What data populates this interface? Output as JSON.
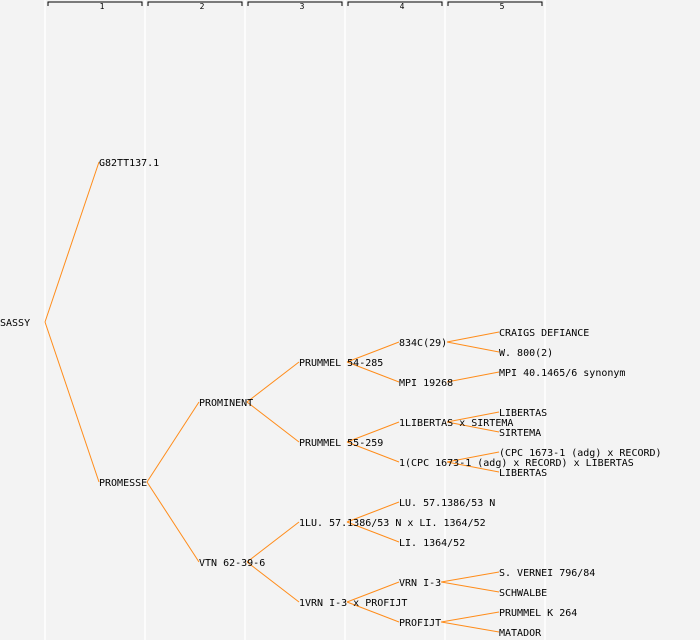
{
  "columns": [
    "1",
    "2",
    "3",
    "4",
    "5"
  ],
  "colors": {
    "line": "#ff8c1a",
    "highlight": "#0000ff",
    "background": "#f3f3f3"
  },
  "tree": {
    "label": "SASSY",
    "children": [
      {
        "label": "G82TT137.1",
        "children": []
      },
      {
        "label": "PROMESSE",
        "children": [
          {
            "label": "PROMINENT",
            "children": [
              {
                "label": "PRUMMEL 54-285",
                "children": [
                  {
                    "label": "834C(29)",
                    "children": [
                      {
                        "label": "CRAIGS DEFIANCE",
                        "children": []
                      },
                      {
                        "label": "W. 800(2)",
                        "children": []
                      }
                    ]
                  },
                  {
                    "label": "MPI 19268",
                    "highlight": true,
                    "children": [
                      {
                        "label": "MPI 40.1465/6 synonym",
                        "children": []
                      }
                    ]
                  }
                ]
              },
              {
                "label": "PRUMMEL 55-259",
                "children": [
                  {
                    "label": "1LIBERTAS x SIRTEMA",
                    "children": [
                      {
                        "label": "LIBERTAS",
                        "children": []
                      },
                      {
                        "label": "SIRTEMA",
                        "children": []
                      }
                    ]
                  },
                  {
                    "label": "1(CPC 1673-1 (adg) x RECORD) x LIBERTAS",
                    "children": [
                      {
                        "label": "(CPC 1673-1 (adg) x RECORD)",
                        "children": []
                      },
                      {
                        "label": "LIBERTAS",
                        "children": []
                      }
                    ]
                  }
                ]
              }
            ]
          },
          {
            "label": "VTN 62-39-6",
            "children": [
              {
                "label": "1LU. 57.1386/53 N x LI. 1364/52",
                "children": [
                  {
                    "label": "LU. 57.1386/53 N",
                    "children": []
                  },
                  {
                    "label": "LI. 1364/52",
                    "children": []
                  }
                ]
              },
              {
                "label": "1VRN I-3 x PROFIJT",
                "children": [
                  {
                    "label": "VRN I-3",
                    "children": [
                      {
                        "label": "S. VERNEI 796/84",
                        "children": []
                      },
                      {
                        "label": "SCHWALBE",
                        "children": []
                      }
                    ]
                  },
                  {
                    "label": "PROFIJT",
                    "children": [
                      {
                        "label": "PRUMMEL K 264",
                        "children": []
                      },
                      {
                        "label": "MATADOR",
                        "children": []
                      }
                    ]
                  }
                ]
              }
            ]
          }
        ]
      }
    ]
  }
}
